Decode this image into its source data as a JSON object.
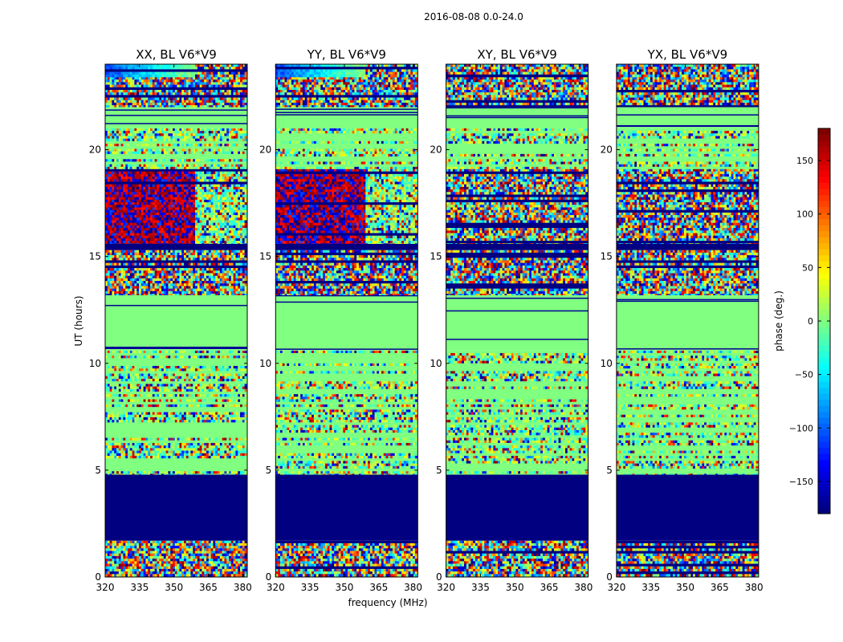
{
  "chart_data": {
    "type": "heatmap",
    "suptitle": "2016-08-08 0.0-24.0",
    "xlabel": "frequency (MHz)",
    "ylabel": "UT (hours)",
    "xlim": [
      320,
      382
    ],
    "ylim": [
      0,
      24
    ],
    "xticks": [
      320,
      335,
      350,
      365,
      380
    ],
    "yticks": [
      0,
      5,
      10,
      15,
      20
    ],
    "colorbar": {
      "label": "phase (deg.)",
      "range": [
        -180,
        180
      ],
      "ticks": [
        150,
        100,
        50,
        0,
        -50,
        -100,
        -150
      ],
      "colormap": "jet",
      "colors": [
        "#00007f",
        "#0000ff",
        "#007fff",
        "#00ffff",
        "#7fff7f",
        "#ffff00",
        "#ff7f00",
        "#ff0000",
        "#7f0000"
      ]
    },
    "panels": [
      {
        "title": "XX, BL V6*V9",
        "bands": [
          {
            "from": 0.0,
            "to": 1.7,
            "state": "noise"
          },
          {
            "from": 1.7,
            "to": 4.8,
            "state": "flagged",
            "value": -180
          },
          {
            "from": 4.8,
            "to": 10.6,
            "state": "mixed"
          },
          {
            "from": 10.6,
            "to": 13.2,
            "state": "zero",
            "value": 0
          },
          {
            "from": 13.2,
            "to": 15.3,
            "state": "noise"
          },
          {
            "from": 15.3,
            "to": 15.6,
            "state": "flagged",
            "value": -180
          },
          {
            "from": 15.6,
            "to": 19.1,
            "state": "warm"
          },
          {
            "from": 19.1,
            "to": 21.0,
            "state": "mixed"
          },
          {
            "from": 21.0,
            "to": 22.0,
            "state": "zero",
            "value": 0
          },
          {
            "from": 22.0,
            "to": 23.4,
            "state": "noise"
          },
          {
            "from": 23.4,
            "to": 24.0,
            "state": "gradient"
          }
        ]
      },
      {
        "title": "YY, BL V6*V9",
        "bands": [
          {
            "from": 0.0,
            "to": 1.7,
            "state": "noise"
          },
          {
            "from": 1.7,
            "to": 4.8,
            "state": "flagged",
            "value": -180
          },
          {
            "from": 4.8,
            "to": 10.6,
            "state": "mixed"
          },
          {
            "from": 10.6,
            "to": 13.2,
            "state": "zero",
            "value": 0
          },
          {
            "from": 13.2,
            "to": 15.3,
            "state": "noise"
          },
          {
            "from": 15.3,
            "to": 15.6,
            "state": "flagged",
            "value": -180
          },
          {
            "from": 15.6,
            "to": 19.1,
            "state": "warm"
          },
          {
            "from": 19.1,
            "to": 21.0,
            "state": "mixed"
          },
          {
            "from": 21.0,
            "to": 22.0,
            "state": "zero",
            "value": 0
          },
          {
            "from": 22.0,
            "to": 23.4,
            "state": "noise"
          },
          {
            "from": 23.4,
            "to": 24.0,
            "state": "gradient"
          }
        ]
      },
      {
        "title": "XY, BL V6*V9",
        "bands": [
          {
            "from": 0.0,
            "to": 1.7,
            "state": "noise"
          },
          {
            "from": 1.7,
            "to": 4.8,
            "state": "flagged",
            "value": -180
          },
          {
            "from": 4.8,
            "to": 10.6,
            "state": "mixed"
          },
          {
            "from": 10.6,
            "to": 13.2,
            "state": "zero",
            "value": 0
          },
          {
            "from": 13.2,
            "to": 15.3,
            "state": "noise"
          },
          {
            "from": 15.3,
            "to": 15.6,
            "state": "flagged",
            "value": -180
          },
          {
            "from": 15.6,
            "to": 19.1,
            "state": "noise"
          },
          {
            "from": 19.1,
            "to": 21.0,
            "state": "mixed"
          },
          {
            "from": 21.0,
            "to": 22.0,
            "state": "zero",
            "value": 0
          },
          {
            "from": 22.0,
            "to": 23.4,
            "state": "noise"
          },
          {
            "from": 23.4,
            "to": 24.0,
            "state": "noise"
          }
        ]
      },
      {
        "title": "YX, BL V6*V9",
        "bands": [
          {
            "from": 0.0,
            "to": 1.7,
            "state": "noise"
          },
          {
            "from": 1.7,
            "to": 4.8,
            "state": "flagged",
            "value": -180
          },
          {
            "from": 4.8,
            "to": 10.6,
            "state": "mixed"
          },
          {
            "from": 10.6,
            "to": 13.2,
            "state": "zero",
            "value": 0
          },
          {
            "from": 13.2,
            "to": 15.3,
            "state": "noise"
          },
          {
            "from": 15.3,
            "to": 15.6,
            "state": "flagged",
            "value": -180
          },
          {
            "from": 15.6,
            "to": 19.1,
            "state": "noise"
          },
          {
            "from": 19.1,
            "to": 21.0,
            "state": "mixed"
          },
          {
            "from": 21.0,
            "to": 22.0,
            "state": "zero",
            "value": 0
          },
          {
            "from": 22.0,
            "to": 23.4,
            "state": "noise"
          },
          {
            "from": 23.4,
            "to": 24.0,
            "state": "noise"
          }
        ]
      }
    ]
  }
}
